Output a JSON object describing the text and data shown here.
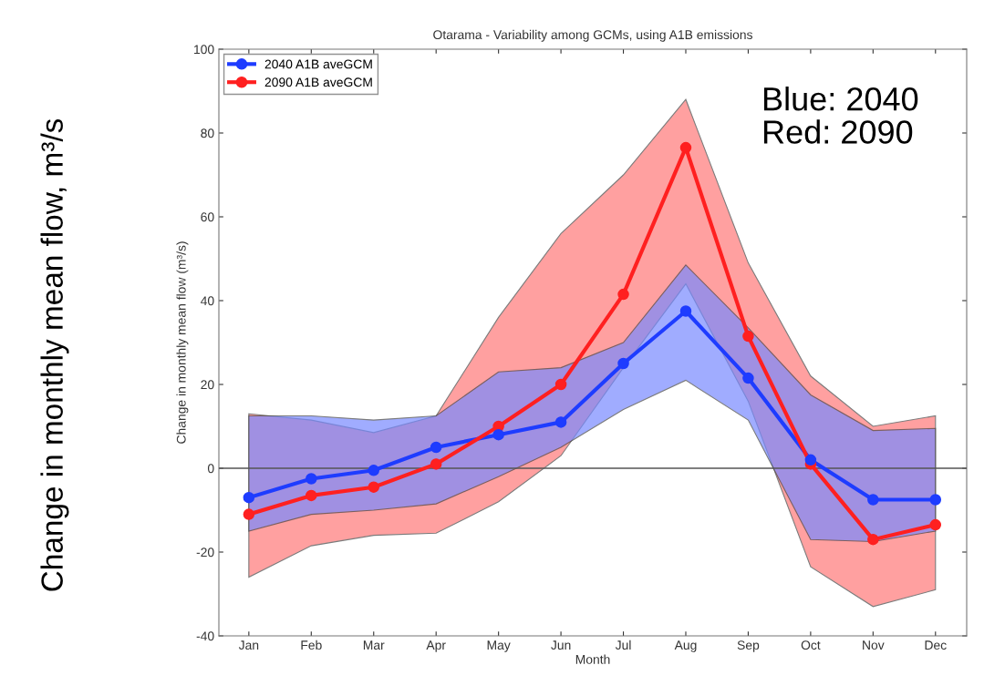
{
  "chart_data": {
    "type": "line",
    "title": "Otarama - Variability among GCMs, using A1B emissions",
    "xlabel": "Month",
    "ylabel": "Change in monthly mean flow (m³/s)",
    "categories": [
      "Jan",
      "Feb",
      "Mar",
      "Apr",
      "May",
      "Jun",
      "Jul",
      "Aug",
      "Sep",
      "Oct",
      "Nov",
      "Dec"
    ],
    "series": [
      {
        "name": "2040 A1B aveGCM",
        "color": "#1e3cff",
        "values": [
          -7,
          -2.5,
          -0.5,
          5,
          8,
          11,
          25,
          37.5,
          21.5,
          2,
          -7.5,
          -7.5
        ],
        "lower": [
          -15,
          -11,
          -10,
          -8.5,
          -2,
          5,
          14,
          21,
          11.5,
          -17,
          -17.5,
          -15
        ],
        "upper": [
          12.5,
          12.5,
          11.5,
          12.5,
          23,
          24,
          30,
          48.5,
          33.5,
          17.5,
          9,
          9.5
        ]
      },
      {
        "name": "2090 A1B aveGCM",
        "color": "#ff2020",
        "values": [
          -11,
          -6.5,
          -4.5,
          1,
          10,
          20,
          41.5,
          76.5,
          31.5,
          1,
          -17,
          -13.5
        ],
        "lower": [
          -26,
          -18.5,
          -16,
          -15.5,
          -8,
          3,
          24,
          44,
          16,
          -23.5,
          -33,
          -29
        ],
        "upper": [
          13,
          11.5,
          8.5,
          12.5,
          36,
          56,
          70,
          88,
          49,
          22,
          10,
          12.5
        ]
      }
    ],
    "ylim": [
      -40,
      100
    ],
    "yticks": [
      -40,
      -20,
      0,
      20,
      40,
      60,
      80,
      100
    ],
    "ref_lines": [
      {
        "axis": "y",
        "value": 0,
        "color": "#555555"
      }
    ],
    "marker": "circle",
    "legend": "top left",
    "grid": false,
    "annotations": [
      "Blue: 2040\nRed: 2090",
      "Change in monthly mean flow, m³/s"
    ]
  }
}
